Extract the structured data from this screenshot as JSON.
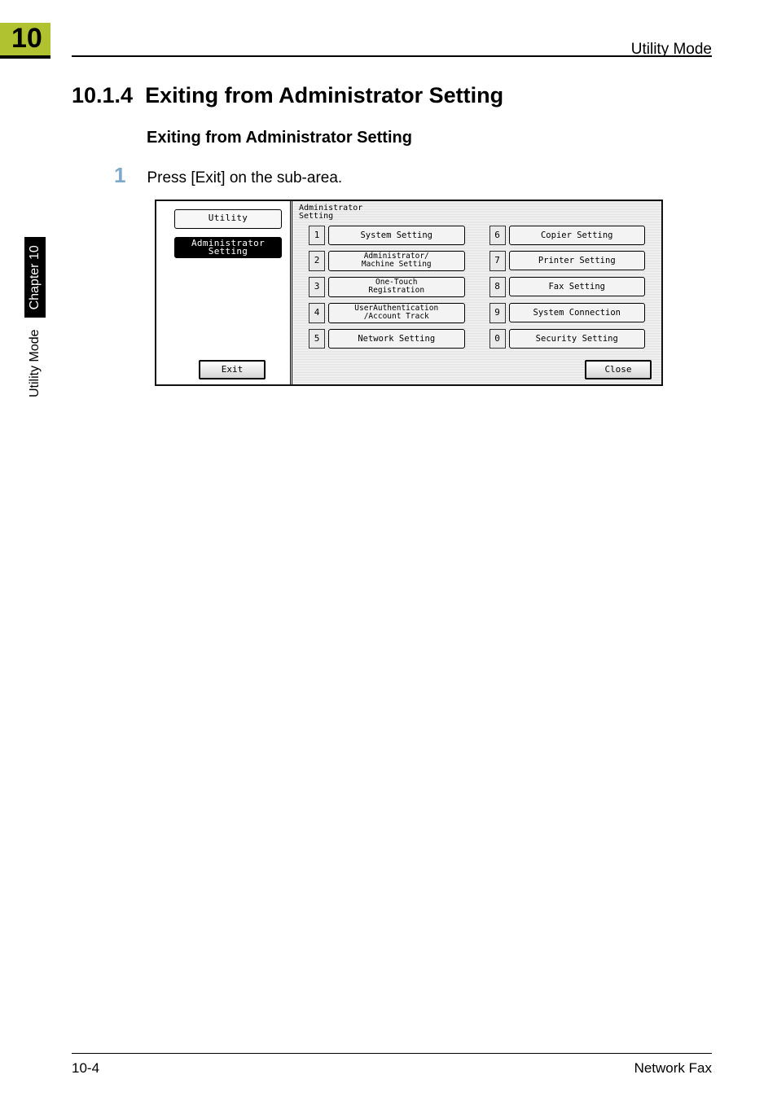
{
  "header": {
    "chapter_number": "10",
    "running_head": "Utility Mode"
  },
  "section": {
    "number": "10.1.4",
    "title": "Exiting from Administrator Setting"
  },
  "subsection": {
    "title": "Exiting from Administrator Setting"
  },
  "step": {
    "number": "1",
    "text": "Press [Exit] on the sub-area."
  },
  "lcd": {
    "title_line1": "Administrator",
    "title_line2": "Setting",
    "left_tabs": {
      "utility": "Utility",
      "admin": "Administrator",
      "admin2": "Setting"
    },
    "exit": "Exit",
    "close": "Close",
    "menu_items": [
      {
        "num": "1",
        "label": "System Setting",
        "two": false
      },
      {
        "num": "6",
        "label": "Copier Setting",
        "two": false
      },
      {
        "num": "2",
        "label": "Administrator/\nMachine Setting",
        "two": true
      },
      {
        "num": "7",
        "label": "Printer Setting",
        "two": false
      },
      {
        "num": "3",
        "label": "One-Touch\nRegistration",
        "two": true
      },
      {
        "num": "8",
        "label": "Fax Setting",
        "two": false
      },
      {
        "num": "4",
        "label": "UserAuthentication\n/Account Track",
        "two": true
      },
      {
        "num": "9",
        "label": "System Connection",
        "two": false
      },
      {
        "num": "5",
        "label": "Network Setting",
        "two": false
      },
      {
        "num": "0",
        "label": "Security Setting",
        "two": false
      }
    ]
  },
  "side": {
    "plain": "Utility Mode",
    "chapter": "Chapter 10"
  },
  "footer": {
    "page": "10-4",
    "doc": "Network Fax"
  },
  "colors": {
    "accent": "#b0c230",
    "step_num": "#7fa9c9"
  }
}
